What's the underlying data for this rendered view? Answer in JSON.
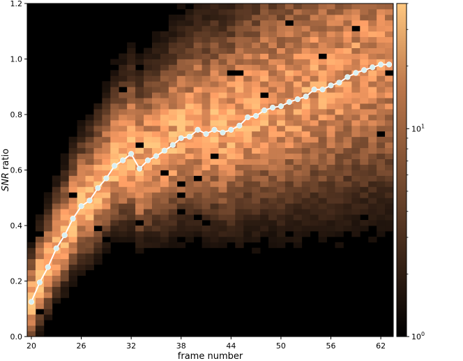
{
  "chart_data": {
    "type": "heatmap",
    "title": "",
    "xlabel": "frame number",
    "ylabel_italic": "SNR",
    "ylabel_rest": " ratio",
    "xlim": [
      19.5,
      63.5
    ],
    "ylim": [
      0,
      1.2
    ],
    "x_ticks": [
      20,
      26,
      32,
      38,
      44,
      50,
      56,
      62
    ],
    "y_ticks": [
      0.0,
      0.2,
      0.4,
      0.6,
      0.8,
      1.0,
      1.2
    ],
    "y_tick_labels": [
      "0.0",
      "0.2",
      "0.4",
      "0.6",
      "0.8",
      "1.0",
      "1.2"
    ],
    "grid": false,
    "colormap": "copper",
    "colorbar": {
      "scale": "log",
      "range": [
        1,
        40
      ],
      "ticks": [
        {
          "base": "10",
          "exp": "0",
          "value": 1
        },
        {
          "base": "10",
          "exp": "1",
          "value": 10
        }
      ]
    },
    "bins": {
      "x_start": 20,
      "x_end": 63,
      "x_step": 1,
      "y_start": 0,
      "y_end": 1.2,
      "y_step": 0.02
    },
    "mean_line": {
      "color": "#ffffff",
      "marker_color": "#d8f0f2",
      "x": [
        20,
        21,
        22,
        23,
        24,
        25,
        26,
        27,
        28,
        29,
        30,
        31,
        32,
        33,
        34,
        35,
        36,
        37,
        38,
        39,
        40,
        41,
        42,
        43,
        44,
        45,
        46,
        47,
        48,
        49,
        50,
        51,
        52,
        53,
        54,
        55,
        56,
        57,
        58,
        59,
        60,
        61,
        62,
        63
      ],
      "y": [
        0.125,
        0.195,
        0.25,
        0.318,
        0.365,
        0.425,
        0.47,
        0.49,
        0.535,
        0.57,
        0.615,
        0.635,
        0.658,
        0.605,
        0.635,
        0.65,
        0.67,
        0.69,
        0.715,
        0.72,
        0.745,
        0.73,
        0.745,
        0.735,
        0.745,
        0.76,
        0.79,
        0.795,
        0.815,
        0.825,
        0.83,
        0.845,
        0.855,
        0.865,
        0.89,
        0.89,
        0.905,
        0.915,
        0.935,
        0.95,
        0.96,
        0.97,
        0.98,
        0.98
      ]
    }
  }
}
